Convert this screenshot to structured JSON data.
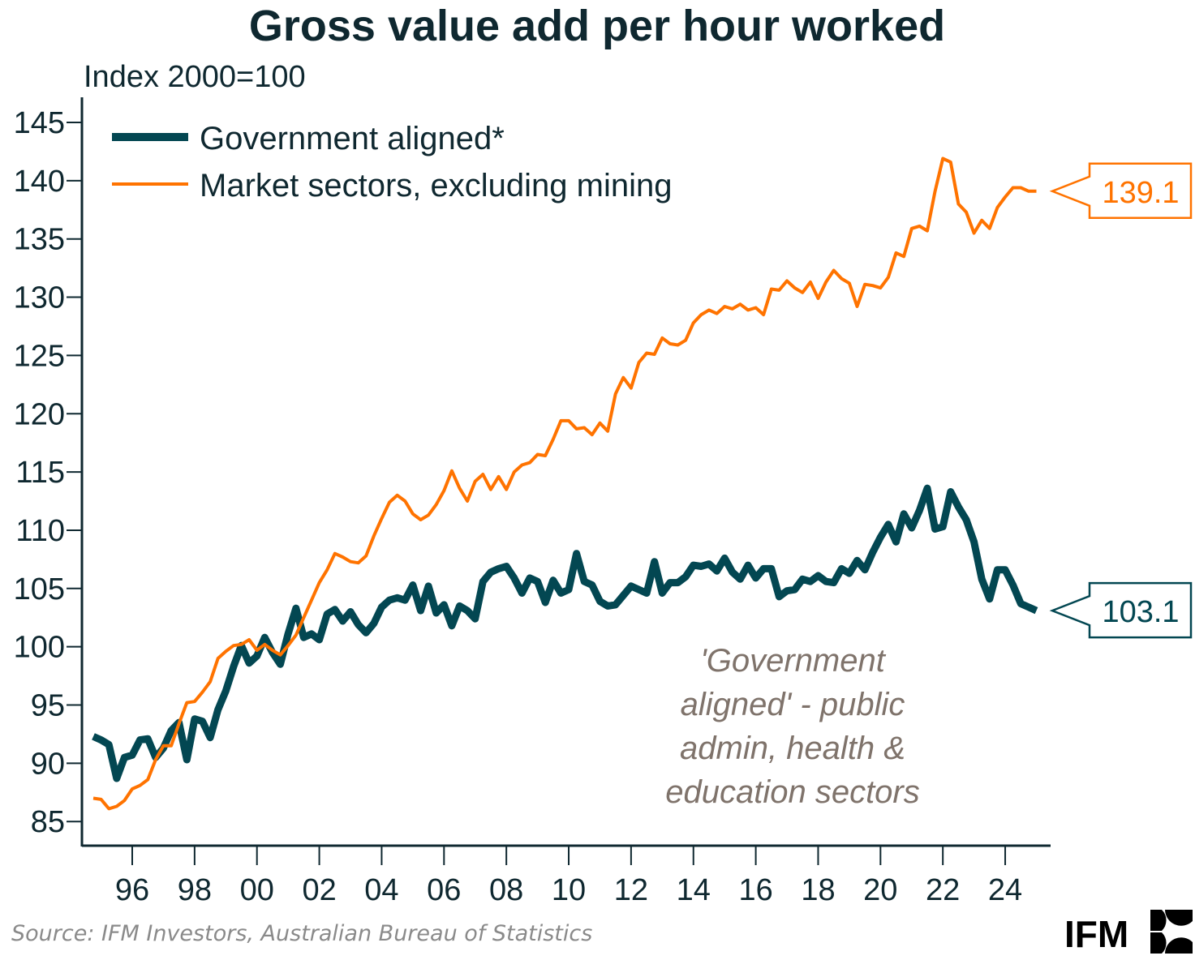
{
  "chart_data": {
    "type": "line",
    "title": "Gross value add per hour worked",
    "ylabel": "Index 2000=100",
    "xlabel": "",
    "ylim": [
      83,
      147
    ],
    "yticks": [
      85,
      90,
      95,
      100,
      105,
      110,
      115,
      120,
      125,
      130,
      135,
      140,
      145
    ],
    "ytick_labels": [
      "85",
      "90",
      "95",
      "100",
      "105",
      "110",
      "115",
      "120",
      "125",
      "130",
      "135",
      "140",
      "145"
    ],
    "xlim": [
      1994.5,
      2025.4
    ],
    "xticks": [
      1996,
      1998,
      2000,
      2002,
      2004,
      2006,
      2008,
      2010,
      2012,
      2014,
      2016,
      2018,
      2020,
      2022,
      2024
    ],
    "xtick_labels": [
      "96",
      "98",
      "00",
      "02",
      "04",
      "06",
      "08",
      "10",
      "12",
      "14",
      "16",
      "18",
      "20",
      "22",
      "24"
    ],
    "grid": false,
    "legend_position": "top-left",
    "x_start": 1994.75,
    "x_step": 0.25,
    "series": [
      {
        "name": "Government aligned*",
        "color": "#034752",
        "width": "thick",
        "end_label": "103.1",
        "values": [
          92.3,
          92.0,
          91.6,
          88.7,
          90.5,
          90.7,
          92.0,
          92.1,
          90.5,
          91.3,
          92.8,
          93.5,
          90.3,
          93.8,
          93.6,
          92.2,
          94.6,
          96.2,
          98.3,
          100.1,
          98.6,
          99.2,
          100.8,
          99.5,
          98.5,
          101.1,
          103.3,
          100.8,
          101.1,
          100.6,
          102.8,
          103.2,
          102.2,
          103.0,
          101.9,
          101.2,
          102.0,
          103.4,
          104.0,
          104.2,
          104.0,
          105.3,
          103.1,
          105.2,
          102.9,
          103.6,
          101.8,
          103.5,
          103.1,
          102.4,
          105.6,
          106.4,
          106.7,
          106.9,
          105.9,
          104.6,
          105.9,
          105.6,
          103.8,
          105.7,
          104.6,
          104.9,
          108.0,
          105.6,
          105.3,
          103.9,
          103.5,
          103.6,
          104.4,
          105.2,
          104.9,
          104.6,
          107.3,
          104.6,
          105.5,
          105.5,
          106.0,
          107.0,
          106.9,
          107.1,
          106.5,
          107.6,
          106.4,
          105.8,
          107.0,
          105.9,
          106.7,
          106.7,
          104.3,
          104.8,
          104.9,
          105.8,
          105.6,
          106.1,
          105.6,
          105.5,
          106.7,
          106.3,
          107.4,
          106.6,
          108.1,
          109.4,
          110.5,
          109.0,
          111.4,
          110.2,
          111.7,
          113.6,
          110.1,
          110.3,
          113.3,
          112.0,
          110.9,
          109.0,
          105.8,
          104.1,
          106.6,
          106.6,
          105.3,
          103.7,
          103.4,
          103.1
        ]
      },
      {
        "name": "Market sectors, excluding mining",
        "color": "#ff7300",
        "width": "thin",
        "end_label": "139.1",
        "values": [
          87.0,
          86.9,
          86.1,
          86.3,
          86.8,
          87.8,
          88.1,
          88.6,
          90.3,
          91.5,
          91.5,
          93.4,
          95.2,
          95.3,
          96.1,
          97.0,
          99.0,
          99.6,
          100.1,
          100.2,
          100.6,
          99.7,
          100.2,
          99.7,
          99.3,
          100.1,
          101.0,
          102.5,
          104.0,
          105.5,
          106.6,
          108.0,
          107.7,
          107.3,
          107.2,
          107.8,
          109.5,
          111.0,
          112.4,
          113.0,
          112.5,
          111.4,
          110.9,
          111.3,
          112.2,
          113.4,
          115.1,
          113.6,
          112.5,
          114.2,
          114.8,
          113.5,
          114.6,
          113.5,
          115.0,
          115.6,
          115.8,
          116.5,
          116.4,
          117.8,
          119.4,
          119.4,
          118.7,
          118.8,
          118.2,
          119.2,
          118.5,
          121.7,
          123.1,
          122.2,
          124.4,
          125.2,
          125.1,
          126.5,
          126.0,
          125.9,
          126.3,
          127.8,
          128.5,
          128.9,
          128.6,
          129.2,
          129.0,
          129.4,
          128.9,
          129.1,
          128.5,
          130.7,
          130.6,
          131.4,
          130.8,
          130.4,
          131.3,
          129.9,
          131.3,
          132.3,
          131.6,
          131.2,
          129.2,
          131.1,
          131.0,
          130.8,
          131.7,
          133.8,
          133.5,
          135.9,
          136.1,
          135.7,
          139.1,
          141.9,
          141.6,
          138.0,
          137.3,
          135.5,
          136.6,
          135.9,
          137.7,
          138.6,
          139.4,
          139.4,
          139.1,
          139.1
        ]
      }
    ],
    "annotation": [
      "'Government",
      "aligned' - public",
      "admin, health &",
      "education sectors"
    ]
  },
  "footer": {
    "source": "Source: IFM Investors, Australian Bureau of Statistics",
    "logo_text": "IFM"
  }
}
